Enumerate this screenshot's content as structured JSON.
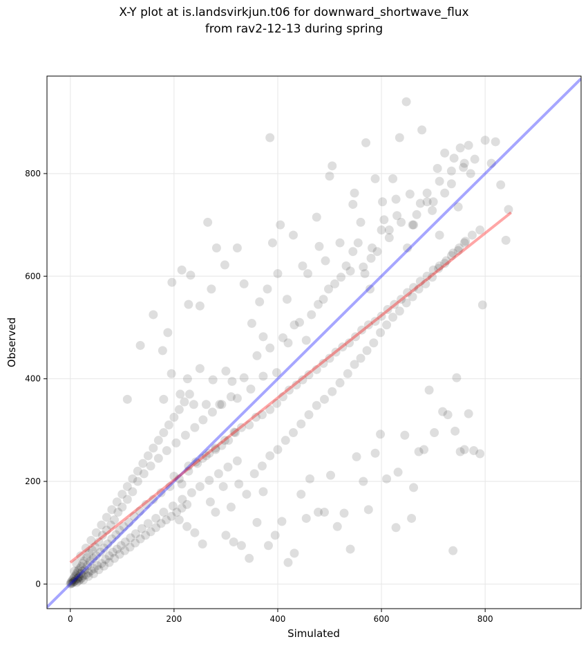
{
  "figure": {
    "title_line1": "X-Y plot at is.landsvirkjun.t06 for downward_shortwave_flux",
    "title_line2": "from rav2-12-13 during spring"
  },
  "chart_data": {
    "type": "scatter",
    "title": "X-Y plot at is.landsvirkjun.t06 for downward_shortwave_flux\nfrom rav2-12-13 during spring",
    "xlabel": "Simulated",
    "ylabel": "Observed",
    "xlim": [
      -45,
      985
    ],
    "ylim": [
      -48,
      990
    ],
    "xticks": [
      0,
      200,
      400,
      600,
      800
    ],
    "yticks": [
      0,
      200,
      400,
      600,
      800
    ],
    "grid": true,
    "colors": {
      "points": "#000000",
      "one_to_one_line": "#0000ff",
      "fit_line": "#ff0000",
      "grid": "#e6e6e6"
    },
    "one_to_one_line": {
      "x": [
        -45,
        985
      ],
      "y": [
        -45,
        985
      ]
    },
    "fit_line": {
      "x": [
        0,
        850
      ],
      "y": [
        42,
        724
      ]
    },
    "points": [
      [
        0,
        0
      ],
      [
        1,
        3
      ],
      [
        2,
        1
      ],
      [
        3,
        6
      ],
      [
        4,
        2
      ],
      [
        5,
        9
      ],
      [
        6,
        4
      ],
      [
        7,
        12
      ],
      [
        8,
        5
      ],
      [
        9,
        15
      ],
      [
        10,
        8
      ],
      [
        11,
        18
      ],
      [
        12,
        3
      ],
      [
        13,
        22
      ],
      [
        14,
        10
      ],
      [
        15,
        26
      ],
      [
        16,
        6
      ],
      [
        17,
        14
      ],
      [
        18,
        30
      ],
      [
        19,
        9
      ],
      [
        20,
        20
      ],
      [
        21,
        34
      ],
      [
        22,
        12
      ],
      [
        23,
        25
      ],
      [
        24,
        40
      ],
      [
        25,
        16
      ],
      [
        27,
        45
      ],
      [
        28,
        28
      ],
      [
        30,
        18
      ],
      [
        32,
        52
      ],
      [
        33,
        36
      ],
      [
        35,
        22
      ],
      [
        36,
        60
      ],
      [
        38,
        44
      ],
      [
        40,
        26
      ],
      [
        42,
        66
      ],
      [
        44,
        50
      ],
      [
        46,
        30
      ],
      [
        48,
        72
      ],
      [
        50,
        55
      ],
      [
        52,
        36
      ],
      [
        55,
        82
      ],
      [
        58,
        62
      ],
      [
        60,
        40
      ],
      [
        62,
        95
      ],
      [
        65,
        70
      ],
      [
        68,
        48
      ],
      [
        70,
        105
      ],
      [
        72,
        78
      ],
      [
        75,
        55
      ],
      [
        78,
        115
      ],
      [
        80,
        88
      ],
      [
        82,
        62
      ],
      [
        85,
        125
      ],
      [
        88,
        96
      ],
      [
        90,
        68
      ],
      [
        92,
        140
      ],
      [
        95,
        105
      ],
      [
        98,
        75
      ],
      [
        100,
        150
      ],
      [
        103,
        112
      ],
      [
        106,
        82
      ],
      [
        110,
        165
      ],
      [
        113,
        120
      ],
      [
        116,
        90
      ],
      [
        120,
        180
      ],
      [
        123,
        132
      ],
      [
        126,
        98
      ],
      [
        130,
        200
      ],
      [
        134,
        142
      ],
      [
        138,
        108
      ],
      [
        142,
        215
      ],
      [
        146,
        155
      ],
      [
        150,
        118
      ],
      [
        155,
        230
      ],
      [
        160,
        165
      ],
      [
        165,
        128
      ],
      [
        170,
        245
      ],
      [
        175,
        178
      ],
      [
        180,
        140
      ],
      [
        186,
        260
      ],
      [
        192,
        190
      ],
      [
        198,
        152
      ],
      [
        204,
        275
      ],
      [
        210,
        205
      ],
      [
        216,
        165
      ],
      [
        222,
        290
      ],
      [
        228,
        220
      ],
      [
        234,
        178
      ],
      [
        240,
        305
      ],
      [
        245,
        235
      ],
      [
        250,
        190
      ],
      [
        256,
        320
      ],
      [
        262,
        250
      ],
      [
        268,
        202
      ],
      [
        274,
        335
      ],
      [
        280,
        265
      ],
      [
        286,
        215
      ],
      [
        292,
        350
      ],
      [
        298,
        280
      ],
      [
        304,
        228
      ],
      [
        310,
        365
      ],
      [
        316,
        296
      ],
      [
        322,
        240
      ],
      [
        8,
        25
      ],
      [
        12,
        40
      ],
      [
        15,
        12
      ],
      [
        20,
        55
      ],
      [
        25,
        8
      ],
      [
        30,
        70
      ],
      [
        35,
        15
      ],
      [
        40,
        85
      ],
      [
        45,
        20
      ],
      [
        50,
        100
      ],
      [
        55,
        28
      ],
      [
        60,
        115
      ],
      [
        65,
        35
      ],
      [
        70,
        130
      ],
      [
        75,
        42
      ],
      [
        80,
        145
      ],
      [
        85,
        50
      ],
      [
        90,
        160
      ],
      [
        95,
        58
      ],
      [
        100,
        175
      ],
      [
        105,
        65
      ],
      [
        110,
        190
      ],
      [
        115,
        72
      ],
      [
        120,
        205
      ],
      [
        125,
        80
      ],
      [
        130,
        220
      ],
      [
        135,
        88
      ],
      [
        140,
        235
      ],
      [
        145,
        95
      ],
      [
        150,
        250
      ],
      [
        155,
        102
      ],
      [
        160,
        265
      ],
      [
        165,
        110
      ],
      [
        170,
        280
      ],
      [
        175,
        118
      ],
      [
        180,
        295
      ],
      [
        185,
        125
      ],
      [
        190,
        310
      ],
      [
        195,
        132
      ],
      [
        200,
        325
      ],
      [
        205,
        140
      ],
      [
        210,
        340
      ],
      [
        215,
        148
      ],
      [
        220,
        355
      ],
      [
        225,
        155
      ],
      [
        230,
        370
      ],
      [
        110,
        360
      ],
      [
        135,
        465
      ],
      [
        160,
        525
      ],
      [
        178,
        455
      ],
      [
        188,
        490
      ],
      [
        196,
        588
      ],
      [
        215,
        612
      ],
      [
        228,
        545
      ],
      [
        232,
        602
      ],
      [
        250,
        542
      ],
      [
        265,
        705
      ],
      [
        272,
        575
      ],
      [
        282,
        655
      ],
      [
        298,
        622
      ],
      [
        322,
        655
      ],
      [
        335,
        585
      ],
      [
        350,
        508
      ],
      [
        365,
        550
      ],
      [
        372,
        482
      ],
      [
        380,
        575
      ],
      [
        385,
        870
      ],
      [
        390,
        665
      ],
      [
        400,
        605
      ],
      [
        405,
        700
      ],
      [
        418,
        555
      ],
      [
        430,
        680
      ],
      [
        448,
        620
      ],
      [
        458,
        605
      ],
      [
        475,
        715
      ],
      [
        480,
        658
      ],
      [
        492,
        630
      ],
      [
        500,
        795
      ],
      [
        505,
        815
      ],
      [
        520,
        665
      ],
      [
        540,
        610
      ],
      [
        545,
        740
      ],
      [
        548,
        762
      ],
      [
        560,
        705
      ],
      [
        565,
        618
      ],
      [
        570,
        860
      ],
      [
        578,
        575
      ],
      [
        582,
        655
      ],
      [
        588,
        790
      ],
      [
        600,
        690
      ],
      [
        602,
        745
      ],
      [
        615,
        675
      ],
      [
        622,
        790
      ],
      [
        630,
        718
      ],
      [
        635,
        870
      ],
      [
        648,
        940
      ],
      [
        655,
        760
      ],
      [
        660,
        700
      ],
      [
        668,
        720
      ],
      [
        678,
        885
      ],
      [
        688,
        745
      ],
      [
        698,
        728
      ],
      [
        708,
        810
      ],
      [
        712,
        680
      ],
      [
        722,
        840
      ],
      [
        735,
        805
      ],
      [
        740,
        830
      ],
      [
        752,
        850
      ],
      [
        760,
        820
      ],
      [
        768,
        855
      ],
      [
        780,
        828
      ],
      [
        790,
        690
      ],
      [
        800,
        865
      ],
      [
        812,
        820
      ],
      [
        820,
        862
      ],
      [
        830,
        778
      ],
      [
        840,
        670
      ],
      [
        845,
        730
      ],
      [
        200,
        210
      ],
      [
        215,
        195
      ],
      [
        228,
        230
      ],
      [
        242,
        238
      ],
      [
        255,
        245
      ],
      [
        268,
        255
      ],
      [
        280,
        262
      ],
      [
        292,
        270
      ],
      [
        305,
        280
      ],
      [
        318,
        295
      ],
      [
        330,
        305
      ],
      [
        345,
        310
      ],
      [
        358,
        325
      ],
      [
        370,
        330
      ],
      [
        385,
        340
      ],
      [
        398,
        352
      ],
      [
        410,
        365
      ],
      [
        422,
        378
      ],
      [
        436,
        388
      ],
      [
        448,
        398
      ],
      [
        460,
        408
      ],
      [
        475,
        418
      ],
      [
        488,
        430
      ],
      [
        500,
        440
      ],
      [
        512,
        452
      ],
      [
        525,
        462
      ],
      [
        538,
        470
      ],
      [
        550,
        482
      ],
      [
        562,
        495
      ],
      [
        575,
        505
      ],
      [
        588,
        512
      ],
      [
        600,
        522
      ],
      [
        612,
        535
      ],
      [
        625,
        545
      ],
      [
        638,
        555
      ],
      [
        650,
        568
      ],
      [
        662,
        578
      ],
      [
        675,
        590
      ],
      [
        688,
        600
      ],
      [
        700,
        612
      ],
      [
        712,
        620
      ],
      [
        725,
        630
      ],
      [
        738,
        645
      ],
      [
        750,
        655
      ],
      [
        762,
        668
      ],
      [
        775,
        680
      ],
      [
        300,
        95
      ],
      [
        315,
        82
      ],
      [
        330,
        75
      ],
      [
        345,
        50
      ],
      [
        360,
        120
      ],
      [
        372,
        180
      ],
      [
        382,
        75
      ],
      [
        395,
        95
      ],
      [
        408,
        122
      ],
      [
        420,
        42
      ],
      [
        432,
        60
      ],
      [
        445,
        175
      ],
      [
        455,
        128
      ],
      [
        462,
        205
      ],
      [
        478,
        140
      ],
      [
        490,
        140
      ],
      [
        502,
        212
      ],
      [
        515,
        112
      ],
      [
        528,
        138
      ],
      [
        540,
        68
      ],
      [
        552,
        248
      ],
      [
        565,
        200
      ],
      [
        575,
        145
      ],
      [
        588,
        255
      ],
      [
        598,
        292
      ],
      [
        610,
        205
      ],
      [
        628,
        110
      ],
      [
        632,
        218
      ],
      [
        645,
        290
      ],
      [
        658,
        128
      ],
      [
        662,
        188
      ],
      [
        672,
        258
      ],
      [
        682,
        262
      ],
      [
        692,
        378
      ],
      [
        702,
        295
      ],
      [
        718,
        336
      ],
      [
        728,
        330
      ],
      [
        738,
        65
      ],
      [
        742,
        298
      ],
      [
        752,
        258
      ],
      [
        760,
        262
      ],
      [
        768,
        332
      ],
      [
        778,
        260
      ],
      [
        790,
        254
      ],
      [
        795,
        544
      ],
      [
        745,
        402
      ],
      [
        210,
        125
      ],
      [
        225,
        112
      ],
      [
        240,
        100
      ],
      [
        255,
        78
      ],
      [
        270,
        160
      ],
      [
        280,
        140
      ],
      [
        295,
        190
      ],
      [
        310,
        150
      ],
      [
        325,
        195
      ],
      [
        340,
        175
      ],
      [
        355,
        215
      ],
      [
        370,
        230
      ],
      [
        385,
        250
      ],
      [
        400,
        262
      ],
      [
        415,
        280
      ],
      [
        430,
        295
      ],
      [
        445,
        312
      ],
      [
        460,
        330
      ],
      [
        475,
        348
      ],
      [
        490,
        360
      ],
      [
        505,
        375
      ],
      [
        520,
        392
      ],
      [
        535,
        410
      ],
      [
        548,
        428
      ],
      [
        560,
        440
      ],
      [
        572,
        455
      ],
      [
        585,
        470
      ],
      [
        598,
        490
      ],
      [
        610,
        505
      ],
      [
        622,
        520
      ],
      [
        635,
        532
      ],
      [
        648,
        548
      ],
      [
        660,
        560
      ],
      [
        672,
        575
      ],
      [
        685,
        585
      ],
      [
        698,
        598
      ],
      [
        710,
        615
      ],
      [
        722,
        625
      ],
      [
        735,
        640
      ],
      [
        748,
        650
      ],
      [
        760,
        665
      ],
      [
        180,
        360
      ],
      [
        195,
        410
      ],
      [
        212,
        370
      ],
      [
        226,
        400
      ],
      [
        238,
        350
      ],
      [
        250,
        420
      ],
      [
        262,
        350
      ],
      [
        275,
        398
      ],
      [
        288,
        350
      ],
      [
        300,
        415
      ],
      [
        312,
        395
      ],
      [
        322,
        362
      ],
      [
        335,
        402
      ],
      [
        348,
        380
      ],
      [
        360,
        445
      ],
      [
        372,
        405
      ],
      [
        385,
        460
      ],
      [
        398,
        412
      ],
      [
        410,
        480
      ],
      [
        420,
        470
      ],
      [
        432,
        505
      ],
      [
        442,
        510
      ],
      [
        455,
        475
      ],
      [
        465,
        525
      ],
      [
        478,
        545
      ],
      [
        488,
        555
      ],
      [
        498,
        575
      ],
      [
        510,
        585
      ],
      [
        522,
        598
      ],
      [
        532,
        620
      ],
      [
        545,
        648
      ],
      [
        555,
        665
      ],
      [
        568,
        605
      ],
      [
        580,
        635
      ],
      [
        592,
        648
      ],
      [
        605,
        710
      ],
      [
        615,
        690
      ],
      [
        628,
        750
      ],
      [
        638,
        705
      ],
      [
        650,
        655
      ],
      [
        662,
        700
      ],
      [
        675,
        742
      ],
      [
        688,
        762
      ],
      [
        700,
        745
      ],
      [
        712,
        785
      ],
      [
        722,
        762
      ],
      [
        735,
        780
      ],
      [
        748,
        735
      ],
      [
        758,
        812
      ],
      [
        772,
        800
      ]
    ]
  }
}
